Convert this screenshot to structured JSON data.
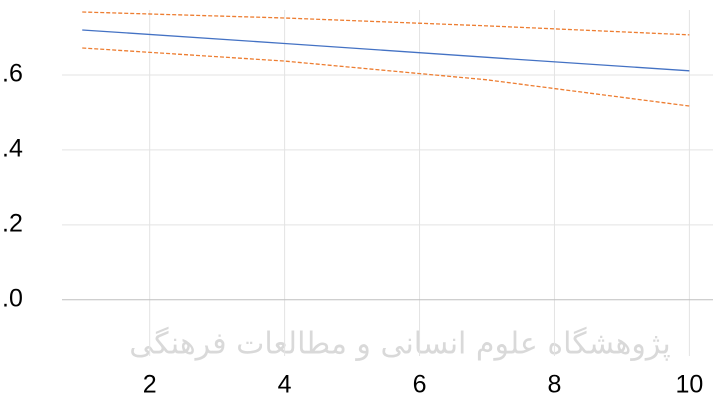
{
  "chart_data": {
    "type": "line",
    "watermark": "پژوهشگاه علوم انسانی و مطالعات فرهنگی",
    "x": [
      1,
      4,
      7,
      10
    ],
    "series": [
      {
        "color": "#4472c4",
        "dashed": false,
        "values": [
          0.72,
          0.684,
          0.647,
          0.611
        ]
      },
      {
        "color": "#ed7d31",
        "dashed": true,
        "values": [
          0.768,
          0.752,
          0.731,
          0.707
        ]
      },
      {
        "color": "#ed7d31",
        "dashed": true,
        "values": [
          0.672,
          0.637,
          0.587,
          0.517
        ]
      }
    ],
    "xlim": [
      0.7,
      10.35
    ],
    "ylim": [
      -0.15,
      0.8
    ],
    "xticks": [
      2,
      4,
      6,
      8,
      10
    ],
    "yticks": [
      {
        "value": 0.6,
        "label": ".6"
      },
      {
        "value": 0.4,
        "label": ".4"
      },
      {
        "value": 0.2,
        "label": ".2"
      },
      {
        "value": 0,
        "label": ".0"
      }
    ],
    "grid": true
  }
}
